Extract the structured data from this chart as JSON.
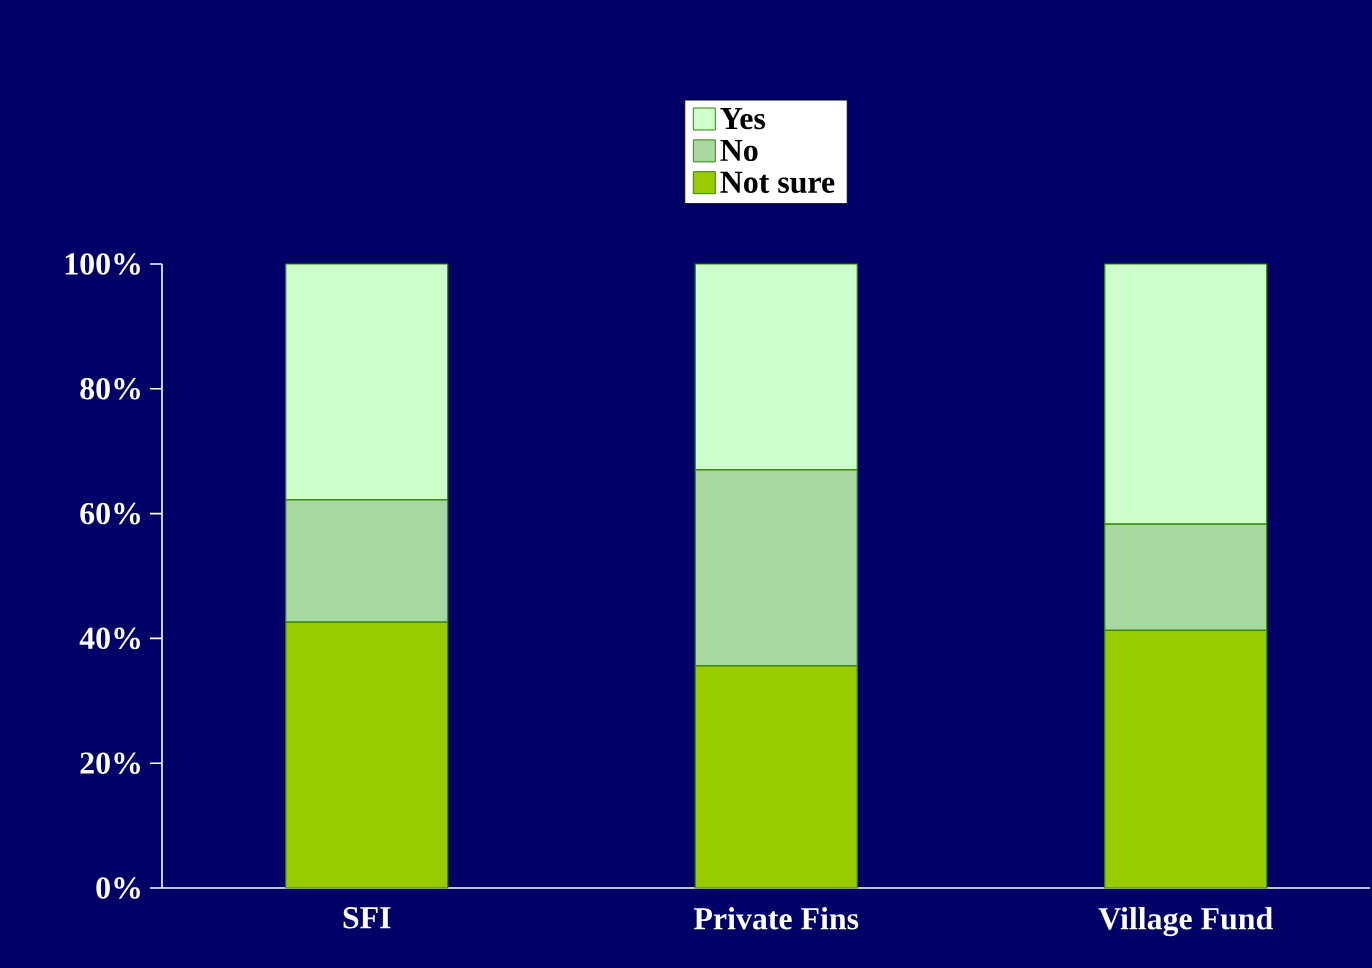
{
  "chart_data": {
    "type": "bar",
    "stacked": true,
    "categories": [
      "SFI",
      "Private Fins",
      "Village Fund"
    ],
    "series": [
      {
        "name": "Not sure",
        "color": "#99cc00",
        "values": [
          42.6,
          35.6,
          41.3
        ]
      },
      {
        "name": "No",
        "color": "#a8d8a0",
        "values": [
          19.6,
          31.4,
          17.0
        ]
      },
      {
        "name": "Yes",
        "color": "#ccffcc",
        "values": [
          37.8,
          33.0,
          41.7
        ]
      }
    ],
    "ylim": [
      0,
      100
    ],
    "yticks": [
      {
        "value": 0,
        "label": "0%"
      },
      {
        "value": 20,
        "label": "20%"
      },
      {
        "value": 40,
        "label": "40%"
      },
      {
        "value": 60,
        "label": "60%"
      },
      {
        "value": 80,
        "label": "80%"
      },
      {
        "value": 100,
        "label": "100%"
      }
    ],
    "legend": "top"
  }
}
